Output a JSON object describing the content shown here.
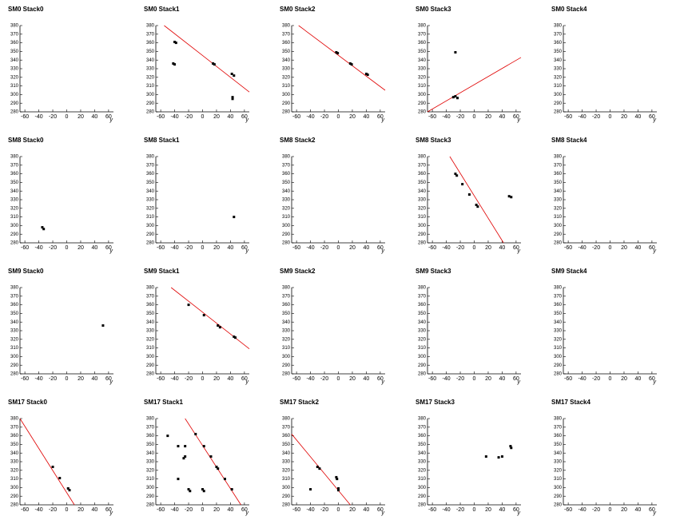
{
  "chart_data": [
    {
      "type": "scatter",
      "title": "SM0 Stack0",
      "xlabel": "y",
      "xlim": [
        -67,
        67
      ],
      "ylim": [
        280,
        380
      ],
      "xticks": [
        -60,
        -40,
        -20,
        0,
        20,
        40,
        60
      ],
      "yticks": [
        280,
        290,
        300,
        310,
        320,
        330,
        340,
        350,
        360,
        370,
        380
      ],
      "points": {
        "color": "#000000",
        "x": [],
        "y": []
      }
    },
    {
      "type": "scatter",
      "title": "SM0 Stack1",
      "xlabel": "y",
      "xlim": [
        -67,
        67
      ],
      "ylim": [
        280,
        380
      ],
      "xticks": [
        -60,
        -40,
        -20,
        0,
        20,
        40,
        60
      ],
      "yticks": [
        280,
        290,
        300,
        310,
        320,
        330,
        340,
        350,
        360,
        370,
        380
      ],
      "points": {
        "color": "#000000",
        "x": [
          -40,
          -38,
          -42,
          -40,
          15,
          17,
          42,
          45,
          43,
          43
        ],
        "y": [
          361,
          360,
          336,
          335,
          336,
          335,
          324,
          322,
          297,
          295
        ]
      },
      "fit": {
        "color": "#e00000",
        "x": [
          -55,
          67
        ],
        "y": [
          380,
          303
        ]
      }
    },
    {
      "type": "scatter",
      "title": "SM0 Stack2",
      "xlabel": "y",
      "xlim": [
        -67,
        67
      ],
      "ylim": [
        280,
        380
      ],
      "xticks": [
        -60,
        -40,
        -20,
        0,
        20,
        40,
        60
      ],
      "yticks": [
        280,
        290,
        300,
        310,
        320,
        330,
        340,
        350,
        360,
        370,
        380
      ],
      "points": {
        "color": "#000000",
        "x": [
          -3,
          -1,
          17,
          19,
          40,
          42
        ],
        "y": [
          349,
          348,
          336,
          335,
          324,
          323
        ]
      },
      "fit": {
        "color": "#e00000",
        "x": [
          -57,
          67
        ],
        "y": [
          380,
          305
        ]
      }
    },
    {
      "type": "scatter",
      "title": "SM0 Stack3",
      "xlabel": "y",
      "xlim": [
        -67,
        67
      ],
      "ylim": [
        280,
        380
      ],
      "xticks": [
        -60,
        -40,
        -20,
        0,
        20,
        40,
        60
      ],
      "yticks": [
        280,
        290,
        300,
        310,
        320,
        330,
        340,
        350,
        360,
        370,
        380
      ],
      "points": {
        "color": "#000000",
        "x": [
          -27,
          -30,
          -27,
          -24
        ],
        "y": [
          349,
          297,
          298,
          296
        ]
      },
      "fit": {
        "color": "#e00000",
        "x": [
          -67,
          67
        ],
        "y": [
          280,
          343
        ]
      }
    },
    {
      "type": "scatter",
      "title": "SM0 Stack4",
      "xlabel": "y",
      "xlim": [
        -67,
        67
      ],
      "ylim": [
        280,
        380
      ],
      "xticks": [
        -60,
        -40,
        -20,
        0,
        20,
        40,
        60
      ],
      "yticks": [
        280,
        290,
        300,
        310,
        320,
        330,
        340,
        350,
        360,
        370,
        380
      ],
      "points": {
        "color": "#000000",
        "x": [],
        "y": []
      }
    },
    {
      "type": "scatter",
      "title": "SM8 Stack0",
      "xlabel": "y",
      "xlim": [
        -67,
        67
      ],
      "ylim": [
        280,
        380
      ],
      "xticks": [
        -60,
        -40,
        -20,
        0,
        20,
        40,
        60
      ],
      "yticks": [
        280,
        290,
        300,
        310,
        320,
        330,
        340,
        350,
        360,
        370,
        380
      ],
      "points": {
        "color": "#000000",
        "x": [
          -35,
          -33
        ],
        "y": [
          298,
          296
        ]
      }
    },
    {
      "type": "scatter",
      "title": "SM8 Stack1",
      "xlabel": "y",
      "xlim": [
        -67,
        67
      ],
      "ylim": [
        280,
        380
      ],
      "xticks": [
        -60,
        -40,
        -20,
        0,
        20,
        40,
        60
      ],
      "yticks": [
        280,
        290,
        300,
        310,
        320,
        330,
        340,
        350,
        360,
        370,
        380
      ],
      "points": {
        "color": "#000000",
        "x": [
          45
        ],
        "y": [
          310
        ]
      }
    },
    {
      "type": "scatter",
      "title": "SM8 Stack2",
      "xlabel": "y",
      "xlim": [
        -67,
        67
      ],
      "ylim": [
        280,
        380
      ],
      "xticks": [
        -60,
        -40,
        -20,
        0,
        20,
        40,
        60
      ],
      "yticks": [
        280,
        290,
        300,
        310,
        320,
        330,
        340,
        350,
        360,
        370,
        380
      ],
      "points": {
        "color": "#000000",
        "x": [],
        "y": []
      }
    },
    {
      "type": "scatter",
      "title": "SM8 Stack3",
      "xlabel": "y",
      "xlim": [
        -67,
        67
      ],
      "ylim": [
        280,
        380
      ],
      "xticks": [
        -60,
        -40,
        -20,
        0,
        20,
        40,
        60
      ],
      "yticks": [
        280,
        290,
        300,
        310,
        320,
        330,
        340,
        350,
        360,
        370,
        380
      ],
      "points": {
        "color": "#000000",
        "x": [
          -27,
          -25,
          -17,
          -7,
          3,
          5,
          50,
          53
        ],
        "y": [
          360,
          358,
          348,
          336,
          324,
          322,
          334,
          333
        ]
      },
      "fit": {
        "color": "#e00000",
        "x": [
          -35,
          42
        ],
        "y": [
          380,
          280
        ]
      }
    },
    {
      "type": "scatter",
      "title": "SM8 Stack4",
      "xlabel": "y",
      "xlim": [
        -67,
        67
      ],
      "ylim": [
        280,
        380
      ],
      "xticks": [
        -60,
        -40,
        -20,
        0,
        20,
        40,
        60
      ],
      "yticks": [
        280,
        290,
        300,
        310,
        320,
        330,
        340,
        350,
        360,
        370,
        380
      ],
      "points": {
        "color": "#000000",
        "x": [],
        "y": []
      }
    },
    {
      "type": "scatter",
      "title": "SM9 Stack0",
      "xlabel": "y",
      "xlim": [
        -67,
        67
      ],
      "ylim": [
        280,
        380
      ],
      "xticks": [
        -60,
        -40,
        -20,
        0,
        20,
        40,
        60
      ],
      "yticks": [
        280,
        290,
        300,
        310,
        320,
        330,
        340,
        350,
        360,
        370,
        380
      ],
      "points": {
        "color": "#000000",
        "x": [
          52
        ],
        "y": [
          336
        ]
      }
    },
    {
      "type": "scatter",
      "title": "SM9 Stack1",
      "xlabel": "y",
      "xlim": [
        -67,
        67
      ],
      "ylim": [
        280,
        380
      ],
      "xticks": [
        -60,
        -40,
        -20,
        0,
        20,
        40,
        60
      ],
      "yticks": [
        280,
        290,
        300,
        310,
        320,
        330,
        340,
        350,
        360,
        370,
        380
      ],
      "points": {
        "color": "#000000",
        "x": [
          -20,
          2,
          22,
          25,
          45,
          47
        ],
        "y": [
          360,
          348,
          336,
          334,
          323,
          322
        ]
      },
      "fit": {
        "color": "#e00000",
        "x": [
          -45,
          67
        ],
        "y": [
          380,
          309
        ]
      }
    },
    {
      "type": "scatter",
      "title": "SM9 Stack2",
      "xlabel": "y",
      "xlim": [
        -67,
        67
      ],
      "ylim": [
        280,
        380
      ],
      "xticks": [
        -60,
        -40,
        -20,
        0,
        20,
        40,
        60
      ],
      "yticks": [
        280,
        290,
        300,
        310,
        320,
        330,
        340,
        350,
        360,
        370,
        380
      ],
      "points": {
        "color": "#000000",
        "x": [],
        "y": []
      }
    },
    {
      "type": "scatter",
      "title": "SM9 Stack3",
      "xlabel": "y",
      "xlim": [
        -67,
        67
      ],
      "ylim": [
        280,
        380
      ],
      "xticks": [
        -60,
        -40,
        -20,
        0,
        20,
        40,
        60
      ],
      "yticks": [
        280,
        290,
        300,
        310,
        320,
        330,
        340,
        350,
        360,
        370,
        380
      ],
      "points": {
        "color": "#000000",
        "x": [],
        "y": []
      }
    },
    {
      "type": "scatter",
      "title": "SM9 Stack4",
      "xlabel": "y",
      "xlim": [
        -67,
        67
      ],
      "ylim": [
        280,
        380
      ],
      "xticks": [
        -60,
        -40,
        -20,
        0,
        20,
        40,
        60
      ],
      "yticks": [
        280,
        290,
        300,
        310,
        320,
        330,
        340,
        350,
        360,
        370,
        380
      ],
      "points": {
        "color": "#000000",
        "x": [],
        "y": []
      }
    },
    {
      "type": "scatter",
      "title": "SM17 Stack0",
      "xlabel": "y",
      "xlim": [
        -67,
        67
      ],
      "ylim": [
        280,
        380
      ],
      "xticks": [
        -60,
        -40,
        -20,
        0,
        20,
        40,
        60
      ],
      "yticks": [
        280,
        290,
        300,
        310,
        320,
        330,
        340,
        350,
        360,
        370,
        380
      ],
      "points": {
        "color": "#000000",
        "x": [
          -20,
          -10,
          2,
          4
        ],
        "y": [
          324,
          311,
          299,
          297
        ]
      },
      "fit": {
        "color": "#e00000",
        "x": [
          -67,
          11
        ],
        "y": [
          380,
          280
        ]
      }
    },
    {
      "type": "scatter",
      "title": "SM17 Stack1",
      "xlabel": "y",
      "xlim": [
        -67,
        67
      ],
      "ylim": [
        280,
        380
      ],
      "xticks": [
        -60,
        -40,
        -20,
        0,
        20,
        40,
        60
      ],
      "yticks": [
        280,
        290,
        300,
        310,
        320,
        330,
        340,
        350,
        360,
        370,
        380
      ],
      "points": {
        "color": "#000000",
        "x": [
          -50,
          -35,
          -25,
          -25,
          -27,
          -10,
          2,
          12,
          20,
          22,
          32,
          42,
          -35,
          -20,
          0,
          -18,
          2
        ],
        "y": [
          360,
          348,
          348,
          336,
          334,
          362,
          348,
          336,
          324,
          322,
          310,
          298,
          310,
          298,
          298,
          296,
          296
        ]
      },
      "fit": {
        "color": "#e00000",
        "x": [
          -25,
          55
        ],
        "y": [
          380,
          280
        ]
      }
    },
    {
      "type": "scatter",
      "title": "SM17 Stack2",
      "xlabel": "y",
      "xlim": [
        -67,
        67
      ],
      "ylim": [
        280,
        380
      ],
      "xticks": [
        -60,
        -40,
        -20,
        0,
        20,
        40,
        60
      ],
      "yticks": [
        280,
        290,
        300,
        310,
        320,
        330,
        340,
        350,
        360,
        370,
        380
      ],
      "points": {
        "color": "#000000",
        "x": [
          -30,
          -27,
          -40,
          -3,
          -2,
          0,
          0
        ],
        "y": [
          324,
          322,
          298,
          312,
          310,
          299,
          297
        ]
      },
      "fit": {
        "color": "#e00000",
        "x": [
          -67,
          17
        ],
        "y": [
          362,
          280
        ]
      }
    },
    {
      "type": "scatter",
      "title": "SM17 Stack3",
      "xlabel": "y",
      "xlim": [
        -67,
        67
      ],
      "ylim": [
        280,
        380
      ],
      "xticks": [
        -60,
        -40,
        -20,
        0,
        20,
        40,
        60
      ],
      "yticks": [
        280,
        290,
        300,
        310,
        320,
        330,
        340,
        350,
        360,
        370,
        380
      ],
      "points": {
        "color": "#000000",
        "x": [
          17,
          35,
          40,
          52,
          53
        ],
        "y": [
          336,
          335,
          336,
          348,
          346
        ]
      }
    },
    {
      "type": "scatter",
      "title": "SM17 Stack4",
      "xlabel": "y",
      "xlim": [
        -67,
        67
      ],
      "ylim": [
        280,
        380
      ],
      "xticks": [
        -60,
        -40,
        -20,
        0,
        20,
        40,
        60
      ],
      "yticks": [
        280,
        290,
        300,
        310,
        320,
        330,
        340,
        350,
        360,
        370,
        380
      ],
      "points": {
        "color": "#000000",
        "x": [],
        "y": []
      }
    }
  ]
}
